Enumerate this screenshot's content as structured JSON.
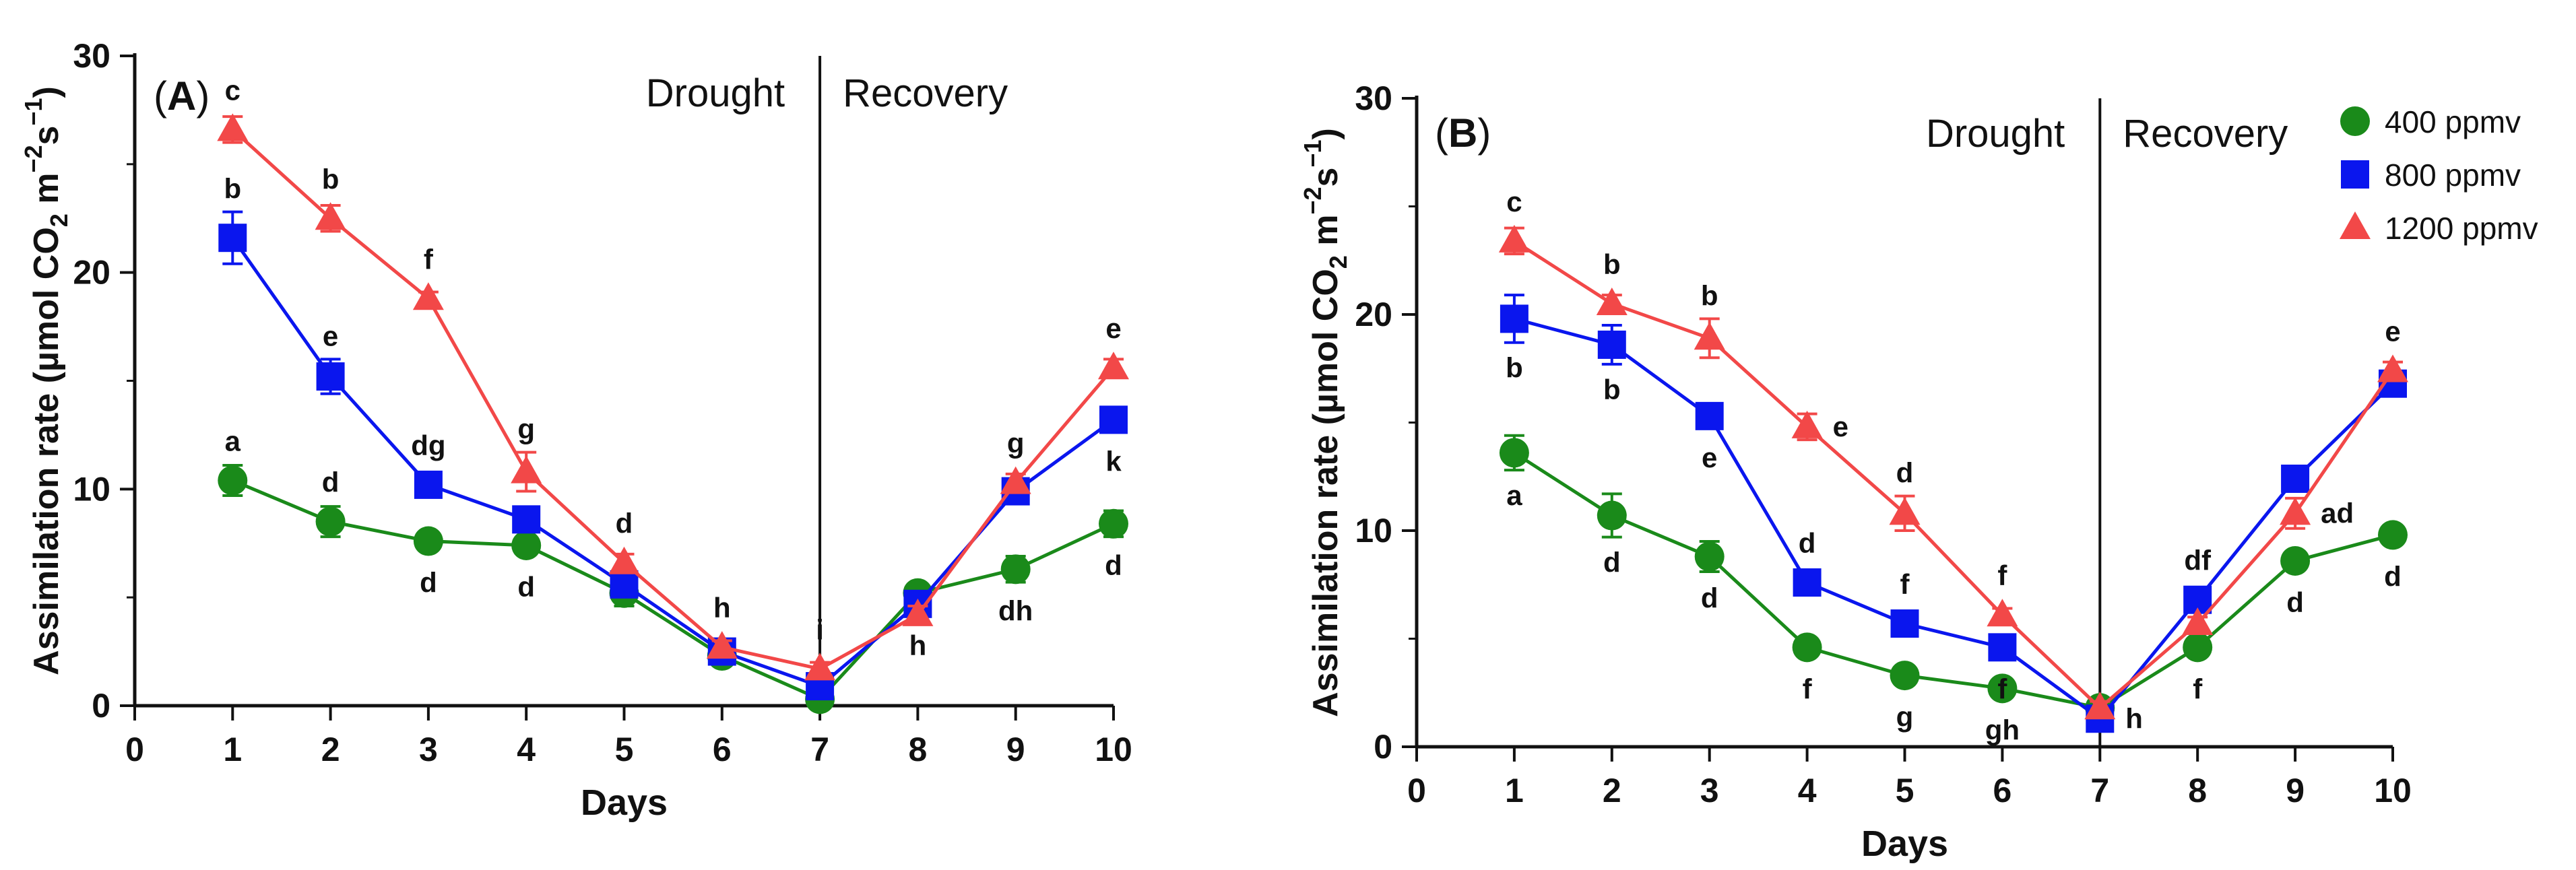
{
  "legend": {
    "position": "top-right of panel B",
    "items": [
      {
        "label": "400 ppmv",
        "color": "#1a8a1a",
        "marker": "circle"
      },
      {
        "label": "800 ppmv",
        "color": "#0a16ee",
        "marker": "square"
      },
      {
        "label": "1200 ppmv",
        "color": "#f24848",
        "marker": "triangle"
      }
    ]
  },
  "chart_data": [
    {
      "type": "line",
      "panel_label": "A",
      "xlabel": "Days",
      "ylabel_parts": {
        "pre": "Assimilation rate (µmol CO",
        "sub": "2",
        "mid": " m",
        "sup1": "−2",
        "s": "s",
        "sup2": "−1",
        "post": ")"
      },
      "xlim": [
        0,
        10
      ],
      "ylim": [
        0,
        30
      ],
      "xticks": [
        "0",
        "1",
        "2",
        "3",
        "4",
        "5",
        "6",
        "7",
        "8",
        "9",
        "10"
      ],
      "yticks": [
        "0",
        "10",
        "20",
        "30"
      ],
      "divider_x": 7,
      "phase_labels": {
        "left": "Drought",
        "right": "Recovery"
      },
      "x": [
        1,
        2,
        3,
        4,
        5,
        6,
        7,
        8,
        9,
        10
      ],
      "series": [
        {
          "name": "400 ppmv",
          "color": "#1a8a1a",
          "marker": "circle",
          "values": [
            10.4,
            8.5,
            7.6,
            7.4,
            5.2,
            2.3,
            0.3,
            5.2,
            6.3,
            8.4
          ],
          "errors": [
            0.7,
            0.7,
            0.3,
            0.3,
            0.6,
            0.4,
            0.2,
            0.3,
            0.6,
            0.6
          ],
          "letters": [
            "a",
            "d",
            "d",
            "d",
            "",
            "",
            "",
            "",
            "dh",
            "d"
          ],
          "letter_side": [
            "above",
            "above",
            "below",
            "below",
            "",
            "",
            "",
            "",
            "below",
            "below"
          ]
        },
        {
          "name": "800 ppmv",
          "color": "#0a16ee",
          "marker": "square",
          "values": [
            21.6,
            15.2,
            10.2,
            8.6,
            5.6,
            2.5,
            0.9,
            4.7,
            9.9,
            13.2
          ],
          "errors": [
            1.2,
            0.8,
            0.4,
            0.3,
            0.3,
            0.3,
            0.3,
            0.3,
            0.4,
            0.5
          ],
          "letters": [
            "b",
            "e",
            "dg",
            "",
            "",
            "",
            "",
            "h",
            "",
            "k"
          ],
          "letter_side": [
            "above",
            "above",
            "above",
            "",
            "",
            "",
            "",
            "below",
            "",
            "below"
          ]
        },
        {
          "name": "1200 ppmv",
          "color": "#f24848",
          "marker": "triangle",
          "values": [
            26.6,
            22.5,
            18.8,
            10.8,
            6.6,
            2.7,
            1.7,
            4.2,
            10.3,
            15.6
          ],
          "errors": [
            0.6,
            0.6,
            0.3,
            0.9,
            0.4,
            0.3,
            0.3,
            0.4,
            0.4,
            0.4
          ],
          "letters": [
            "c",
            "b",
            "f",
            "g",
            "d",
            "h",
            "i",
            "",
            "g",
            "e"
          ],
          "letter_side": [
            "above",
            "above",
            "above",
            "above",
            "above",
            "above",
            "above",
            "",
            "above",
            "above"
          ]
        }
      ]
    },
    {
      "type": "line",
      "panel_label": "B",
      "xlabel": "Days",
      "ylabel_parts": {
        "pre": "Assimilation rate (µmol CO",
        "sub": "2",
        "mid": " m",
        "sup1": "−2",
        "s": "s",
        "sup2": "−1",
        "post": ")"
      },
      "xlim": [
        0,
        10
      ],
      "ylim": [
        0,
        30
      ],
      "xticks": [
        "0",
        "1",
        "2",
        "3",
        "4",
        "5",
        "6",
        "7",
        "8",
        "9",
        "10"
      ],
      "yticks": [
        "0",
        "10",
        "20",
        "30"
      ],
      "divider_x": 7,
      "phase_labels": {
        "left": "Drought",
        "right": "Recovery"
      },
      "x": [
        1,
        2,
        3,
        4,
        5,
        6,
        7,
        8,
        9,
        10
      ],
      "series": [
        {
          "name": "400 ppmv",
          "color": "#1a8a1a",
          "marker": "circle",
          "values": [
            13.6,
            10.7,
            8.8,
            4.6,
            3.3,
            2.7,
            1.8,
            4.6,
            8.6,
            9.8
          ],
          "errors": [
            0.8,
            1.0,
            0.7,
            0.3,
            0.3,
            0.3,
            0.3,
            0.3,
            0.3,
            0.3
          ],
          "letters": [
            "a",
            "d",
            "d",
            "f",
            "g",
            "gh",
            "",
            "f",
            "d",
            "d"
          ],
          "letter_side": [
            "below",
            "below",
            "below",
            "below",
            "below",
            "below",
            "",
            "below",
            "below",
            "below"
          ]
        },
        {
          "name": "800 ppmv",
          "color": "#0a16ee",
          "marker": "square",
          "values": [
            19.8,
            18.6,
            15.3,
            7.6,
            5.7,
            4.6,
            1.3,
            6.8,
            12.4,
            16.8
          ],
          "errors": [
            1.1,
            0.9,
            0.4,
            0.3,
            0.3,
            0.3,
            0.3,
            0.3,
            0.3,
            0.3
          ],
          "letters": [
            "b",
            "b",
            "e",
            "d",
            "f",
            "f",
            "h",
            "df",
            "",
            ""
          ],
          "letter_side": [
            "below",
            "below",
            "below",
            "above",
            "above",
            "below",
            "right",
            "above",
            "",
            ""
          ]
        },
        {
          "name": "1200 ppmv",
          "color": "#f24848",
          "marker": "triangle",
          "values": [
            23.4,
            20.5,
            18.9,
            14.8,
            10.8,
            6.1,
            1.8,
            5.7,
            10.8,
            17.4
          ],
          "errors": [
            0.6,
            0.4,
            0.9,
            0.6,
            0.8,
            0.3,
            0.3,
            0.3,
            0.7,
            0.4
          ],
          "letters": [
            "c",
            "b",
            "b",
            "e",
            "d",
            "f",
            "",
            "",
            "ad",
            "e"
          ],
          "letter_side": [
            "above",
            "above",
            "above",
            "right",
            "above",
            "above",
            "",
            "",
            "right",
            "above"
          ]
        }
      ]
    }
  ]
}
